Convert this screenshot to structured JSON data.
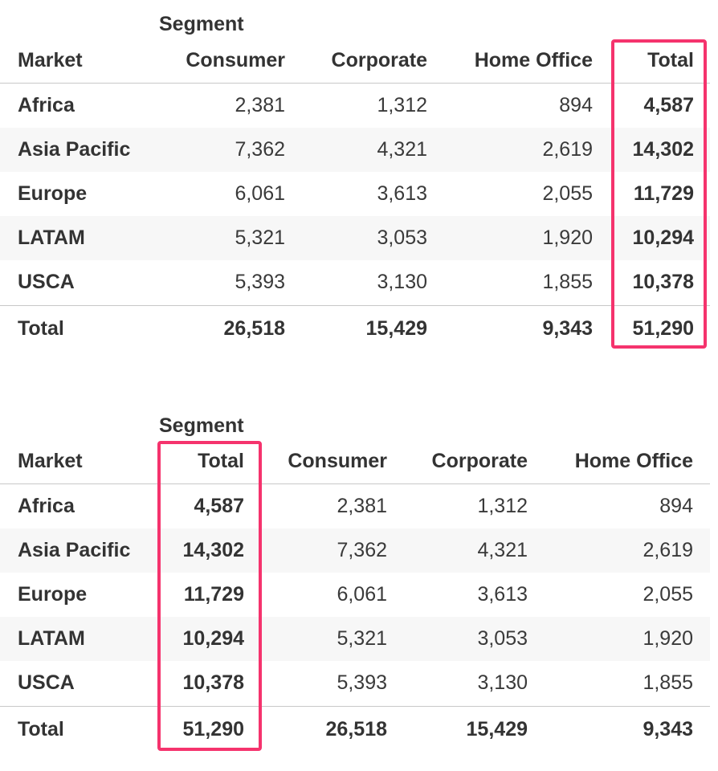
{
  "colors": {
    "highlight": "#f5336d",
    "text": "#333333",
    "alt_row": "#f7f7f7",
    "rule": "#c8c8c8"
  },
  "table_top": {
    "segment_label": "Segment",
    "headers": [
      "Market",
      "Consumer",
      "Corporate",
      "Home Office",
      "Total"
    ],
    "rows": [
      [
        "Africa",
        "2,381",
        "1,312",
        "894",
        "4,587"
      ],
      [
        "Asia Pacific",
        "7,362",
        "4,321",
        "2,619",
        "14,302"
      ],
      [
        "Europe",
        "6,061",
        "3,613",
        "2,055",
        "11,729"
      ],
      [
        "LATAM",
        "5,321",
        "3,053",
        "1,920",
        "10,294"
      ],
      [
        "USCA",
        "5,393",
        "3,130",
        "1,855",
        "10,378"
      ]
    ],
    "total_row": [
      "Total",
      "26,518",
      "15,429",
      "9,343",
      "51,290"
    ],
    "highlighted_column": "Total"
  },
  "table_bottom": {
    "segment_label": "Segment",
    "headers": [
      "Market",
      "Total",
      "Consumer",
      "Corporate",
      "Home Office"
    ],
    "rows": [
      [
        "Africa",
        "4,587",
        "2,381",
        "1,312",
        "894"
      ],
      [
        "Asia Pacific",
        "14,302",
        "7,362",
        "4,321",
        "2,619"
      ],
      [
        "Europe",
        "11,729",
        "6,061",
        "3,613",
        "2,055"
      ],
      [
        "LATAM",
        "10,294",
        "5,321",
        "3,053",
        "1,920"
      ],
      [
        "USCA",
        "10,378",
        "5,393",
        "3,130",
        "1,855"
      ]
    ],
    "total_row": [
      "Total",
      "51,290",
      "26,518",
      "15,429",
      "9,343"
    ],
    "highlighted_column": "Total"
  }
}
